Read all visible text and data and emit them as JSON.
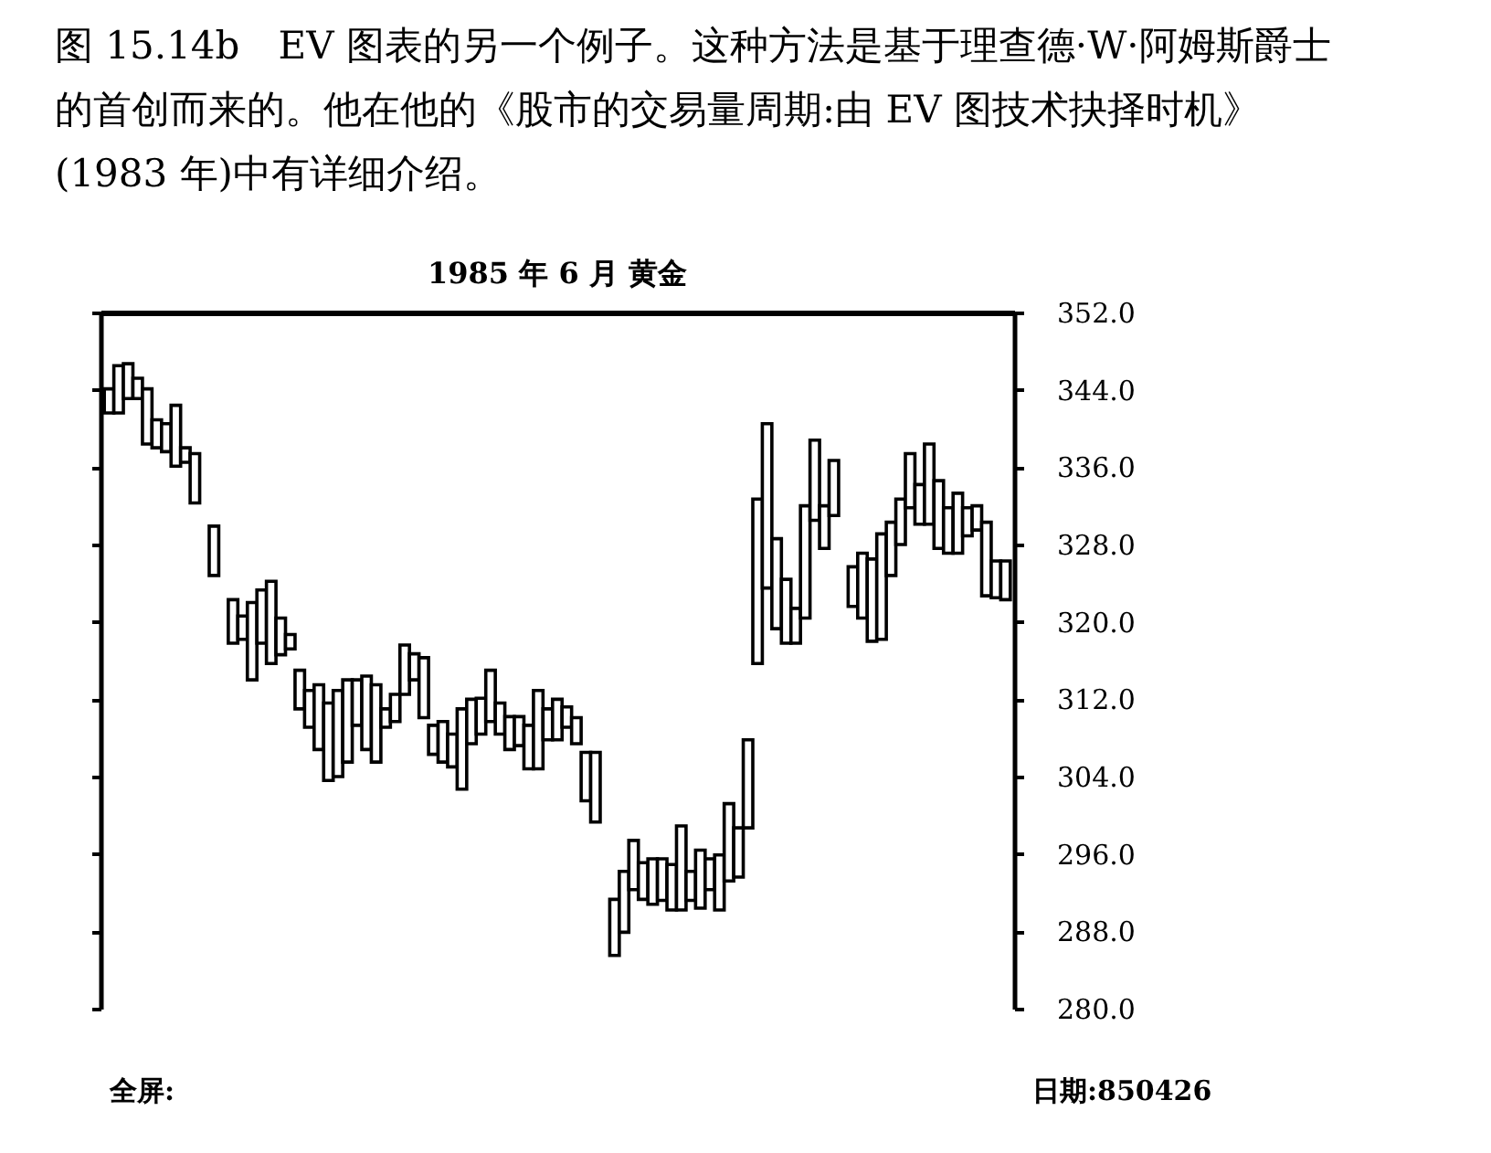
{
  "chart_data": {
    "type": "bar",
    "title": "1985 年 6 月 黄金",
    "annotations": [
      "图 15.14b　EV 图表的另一个例子。这种方法是基于理查德·W·阿姆斯爵士的首创而来的。他在他的《股市的交易量周期:由 EV 图技术抉择时机》(1983 年)中有详细介绍。",
      "全屏:",
      "日期:850426"
    ],
    "categories": [
      null,
      null,
      null,
      null,
      null,
      null,
      null,
      null,
      null,
      null,
      null,
      null,
      null,
      null,
      null,
      null,
      null,
      null,
      null,
      null,
      null,
      null,
      null,
      null,
      null,
      null,
      null,
      null,
      null,
      null,
      null,
      null,
      null,
      null,
      null,
      null,
      null,
      null,
      null,
      null,
      null,
      null,
      null,
      null,
      null,
      null,
      null,
      null,
      null,
      null,
      null,
      null,
      null,
      null,
      null,
      null,
      null,
      null,
      null,
      null,
      null,
      null,
      null,
      null,
      null,
      null,
      null,
      null,
      null,
      null,
      null,
      null,
      null,
      null,
      null,
      null,
      null,
      null,
      null,
      null,
      null,
      null,
      null,
      null,
      null,
      null,
      null,
      null,
      null,
      null,
      null,
      null,
      null,
      null,
      null
    ],
    "base": [
      341.6,
      341.6,
      343.1,
      343.1,
      338.4,
      338.0,
      337.6,
      336.1,
      336.5,
      332.3,
      null,
      324.8,
      null,
      317.8,
      318.2,
      314.0,
      317.8,
      315.7,
      316.6,
      317.2,
      311.0,
      309.1,
      306.8,
      303.6,
      304.0,
      305.5,
      309.3,
      306.8,
      305.5,
      309.1,
      309.7,
      312.5,
      314.0,
      310.1,
      306.3,
      305.5,
      305.0,
      302.7,
      307.4,
      308.4,
      309.7,
      308.4,
      306.8,
      307.2,
      304.8,
      304.8,
      307.8,
      307.8,
      309.1,
      307.4,
      301.5,
      299.3,
      null,
      285.5,
      287.9,
      292.3,
      291.3,
      290.8,
      291.2,
      290.2,
      290.2,
      291.2,
      290.4,
      292.3,
      290.2,
      293.2,
      293.6,
      298.7,
      315.7,
      323.5,
      319.3,
      317.8,
      317.8,
      320.4,
      330.5,
      327.6,
      331.0,
      null,
      321.6,
      320.4,
      318.0,
      318.2,
      324.8,
      328.0,
      331.8,
      330.1,
      330.1,
      327.6,
      327.1,
      327.1,
      328.9,
      329.5,
      322.7,
      322.5,
      322.3
    ],
    "values": [
      2.5,
      4.9,
      3.6,
      2.1,
      5.7,
      2.9,
      2.9,
      6.3,
      1.5,
      5.1,
      null,
      5.1,
      null,
      4.5,
      2.4,
      8.0,
      5.5,
      8.5,
      3.8,
      1.5,
      4.0,
      3.8,
      6.7,
      8.0,
      8.9,
      8.5,
      4.7,
      7.6,
      8.0,
      1.9,
      2.8,
      5.1,
      2.7,
      6.2,
      3.0,
      4.2,
      3.4,
      8.3,
      4.6,
      3.7,
      5.3,
      3.2,
      3.4,
      3.0,
      4.5,
      8.1,
      3.2,
      4.2,
      2.1,
      2.7,
      5.0,
      7.2,
      null,
      5.8,
      6.3,
      5.1,
      3.8,
      4.7,
      4.3,
      4.7,
      8.7,
      3.0,
      6.0,
      3.2,
      5.7,
      8.0,
      5.1,
      9.1,
      17.0,
      17.0,
      9.3,
      6.6,
      3.6,
      11.6,
      8.3,
      4.4,
      5.7,
      null,
      4.1,
      6.7,
      8.5,
      10.9,
      5.5,
      4.7,
      5.6,
      4.1,
      8.3,
      7.0,
      4.7,
      6.2,
      2.9,
      2.5,
      7.6,
      3.8,
      4.0
    ],
    "color": "#000000",
    "ylim": [
      280,
      352
    ],
    "yticks": [
      {
        "value": 280,
        "label": "280.0"
      },
      {
        "value": 288,
        "label": "288.0"
      },
      {
        "value": 296,
        "label": "296.0"
      },
      {
        "value": 304,
        "label": "304.0"
      },
      {
        "value": 312,
        "label": "312.0"
      },
      {
        "value": 320,
        "label": "320.0"
      },
      {
        "value": 328,
        "label": "328.0"
      },
      {
        "value": 336,
        "label": "336.0"
      },
      {
        "value": 344,
        "label": "344.0"
      },
      {
        "value": 352,
        "label": "352.0"
      }
    ]
  }
}
